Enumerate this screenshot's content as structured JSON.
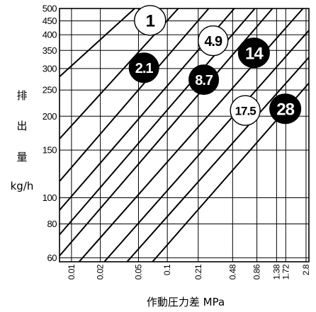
{
  "chart_data": {
    "type": "line",
    "title": "",
    "ylabel_lines": [
      "排",
      "出",
      "量",
      "kg/h"
    ],
    "xlabel": "作動圧力差 MPa",
    "x_scale": "log",
    "y_scale": "log",
    "x_ticks": [
      {
        "value": 0.01,
        "label": "0.01"
      },
      {
        "value": 0.02,
        "label": "0.02"
      },
      {
        "value": 0.05,
        "label": "0.05"
      },
      {
        "value": 0.1,
        "label": "0.1"
      },
      {
        "value": 0.21,
        "label": "0.21"
      },
      {
        "value": 0.48,
        "label": "0.48"
      },
      {
        "value": 0.86,
        "label": "0.86"
      },
      {
        "value": 1.38,
        "label": "1.38"
      },
      {
        "value": 1.72,
        "label": "1.72"
      },
      {
        "value": 2.8,
        "label": "2.8"
      }
    ],
    "y_ticks": [
      {
        "value": 60,
        "label": "60"
      },
      {
        "value": 80,
        "label": "80"
      },
      {
        "value": 100,
        "label": "100"
      },
      {
        "value": 150,
        "label": "150"
      },
      {
        "value": 200,
        "label": "200"
      },
      {
        "value": 250,
        "label": "250"
      },
      {
        "value": 300,
        "label": "300"
      },
      {
        "value": 350,
        "label": "350"
      },
      {
        "value": 400,
        "label": "400"
      },
      {
        "value": 450,
        "label": "450"
      },
      {
        "value": 500,
        "label": "500"
      }
    ],
    "xlim": [
      0.0075,
      3.0
    ],
    "ylim": [
      58,
      500
    ],
    "grid": true,
    "series": [
      {
        "name": "1",
        "style": "white",
        "points": [
          [
            0.0075,
            280
          ],
          [
            0.0456,
            500
          ]
        ],
        "label_at": [
          0.066,
          452
        ]
      },
      {
        "name": "2.1",
        "style": "black",
        "points": [
          [
            0.0075,
            165
          ],
          [
            0.13,
            500
          ]
        ],
        "label_at": [
          0.057,
          302
        ]
      },
      {
        "name": "4.9",
        "style": "white",
        "points": [
          [
            0.0075,
            115
          ],
          [
            0.27,
            500
          ]
        ],
        "label_at": [
          0.3,
          380
        ]
      },
      {
        "name": "8.7",
        "style": "black",
        "points": [
          [
            0.0075,
            90
          ],
          [
            0.5,
            500
          ]
        ],
        "label_at": [
          0.24,
          273
        ]
      },
      {
        "name": "14",
        "style": "black",
        "points": [
          [
            0.0075,
            73
          ],
          [
            0.82,
            500
          ]
        ],
        "label_at": [
          0.8,
          343
        ]
      },
      {
        "name": "17.5",
        "style": "white",
        "points": [
          [
            0.0075,
            61
          ],
          [
            1.25,
            500
          ]
        ],
        "label_at": [
          0.65,
          210
        ]
      },
      {
        "name": "28",
        "style": "black",
        "points": [
          [
            0.012,
            58
          ],
          [
            2.6,
            500
          ]
        ],
        "label_at": [
          1.7,
          213
        ]
      },
      {
        "name": "",
        "style": "none",
        "points": [
          [
            0.022,
            58
          ],
          [
            3.0,
            415
          ]
        ]
      },
      {
        "name": "",
        "style": "none",
        "points": [
          [
            0.038,
            58
          ],
          [
            3.0,
            330
          ]
        ]
      },
      {
        "name": "",
        "style": "none",
        "points": [
          [
            0.07,
            58
          ],
          [
            3.0,
            265
          ]
        ]
      }
    ]
  }
}
